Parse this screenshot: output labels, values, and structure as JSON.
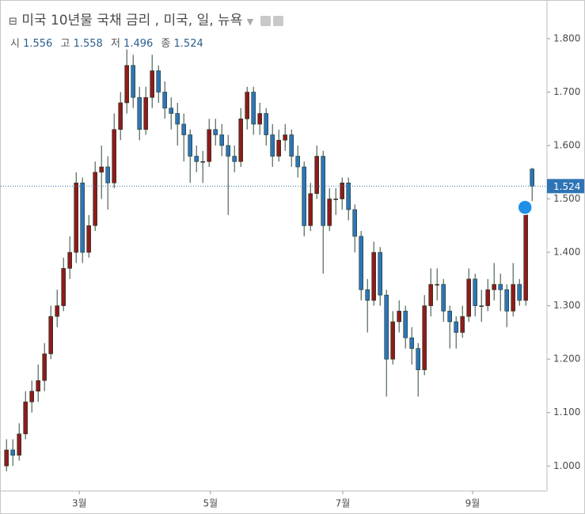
{
  "chart_data": {
    "type": "candlestick",
    "title": "미국 10년물 국채 금리 , 미국, 일, 뉴욕",
    "ohlc_labels": [
      "시",
      "고",
      "저",
      "종"
    ],
    "x": [
      0,
      1,
      2,
      3,
      4,
      5,
      6,
      7,
      8,
      9,
      10,
      11,
      12,
      13,
      14,
      15,
      16,
      17,
      18,
      19,
      20,
      21,
      22,
      23,
      24,
      25,
      26,
      27,
      28,
      29,
      30,
      31,
      32,
      33,
      34,
      35,
      36,
      37,
      38,
      39,
      40,
      41,
      42,
      43,
      44,
      45,
      46,
      47,
      48,
      49,
      50,
      51,
      52,
      53,
      54,
      55,
      56,
      57,
      58,
      59,
      60,
      61,
      62,
      63,
      64,
      65,
      66,
      67,
      68,
      69,
      70,
      71,
      72,
      73,
      74,
      75,
      76,
      77,
      78,
      79,
      80,
      81,
      82,
      83
    ],
    "open": [
      1.0,
      1.03,
      1.02,
      1.06,
      1.12,
      1.14,
      1.16,
      1.21,
      1.28,
      1.3,
      1.37,
      1.4,
      1.53,
      1.4,
      1.45,
      1.55,
      1.56,
      1.53,
      1.63,
      1.68,
      1.75,
      1.69,
      1.63,
      1.69,
      1.74,
      1.7,
      1.67,
      1.66,
      1.64,
      1.62,
      1.58,
      1.57,
      1.57,
      1.63,
      1.62,
      1.6,
      1.58,
      1.57,
      1.65,
      1.7,
      1.64,
      1.66,
      1.62,
      1.58,
      1.61,
      1.62,
      1.58,
      1.56,
      1.45,
      1.51,
      1.58,
      1.45,
      1.5,
      1.5,
      1.53,
      1.48,
      1.43,
      1.33,
      1.31,
      1.4,
      1.32,
      1.2,
      1.27,
      1.29,
      1.24,
      1.22,
      1.18,
      1.3,
      1.34,
      1.34,
      1.29,
      1.27,
      1.25,
      1.28,
      1.35,
      1.3,
      1.3,
      1.33,
      1.34,
      1.33,
      1.29,
      1.34,
      1.31,
      1.556
    ],
    "high": [
      1.05,
      1.05,
      1.08,
      1.14,
      1.16,
      1.19,
      1.23,
      1.3,
      1.33,
      1.39,
      1.43,
      1.55,
      1.54,
      1.47,
      1.57,
      1.6,
      1.58,
      1.66,
      1.7,
      1.78,
      1.77,
      1.71,
      1.71,
      1.77,
      1.75,
      1.72,
      1.69,
      1.68,
      1.66,
      1.63,
      1.6,
      1.59,
      1.65,
      1.65,
      1.64,
      1.62,
      1.6,
      1.67,
      1.71,
      1.71,
      1.68,
      1.67,
      1.64,
      1.63,
      1.64,
      1.63,
      1.6,
      1.57,
      1.53,
      1.6,
      1.59,
      1.52,
      1.52,
      1.54,
      1.54,
      1.49,
      1.44,
      1.35,
      1.42,
      1.41,
      1.33,
      1.29,
      1.31,
      1.3,
      1.26,
      1.23,
      1.32,
      1.37,
      1.37,
      1.35,
      1.3,
      1.28,
      1.3,
      1.37,
      1.36,
      1.33,
      1.35,
      1.38,
      1.36,
      1.34,
      1.38,
      1.35,
      1.48,
      1.558
    ],
    "low": [
      0.99,
      1.0,
      1.01,
      1.05,
      1.1,
      1.12,
      1.14,
      1.2,
      1.26,
      1.29,
      1.35,
      1.38,
      1.38,
      1.39,
      1.44,
      1.5,
      1.48,
      1.52,
      1.61,
      1.66,
      1.67,
      1.61,
      1.62,
      1.67,
      1.68,
      1.65,
      1.63,
      1.6,
      1.57,
      1.53,
      1.55,
      1.53,
      1.56,
      1.6,
      1.58,
      1.47,
      1.55,
      1.56,
      1.63,
      1.62,
      1.62,
      1.6,
      1.56,
      1.57,
      1.59,
      1.56,
      1.54,
      1.43,
      1.44,
      1.5,
      1.36,
      1.44,
      1.47,
      1.48,
      1.46,
      1.4,
      1.31,
      1.25,
      1.3,
      1.3,
      1.13,
      1.19,
      1.25,
      1.22,
      1.19,
      1.13,
      1.17,
      1.28,
      1.31,
      1.27,
      1.22,
      1.22,
      1.24,
      1.27,
      1.28,
      1.27,
      1.29,
      1.31,
      1.29,
      1.26,
      1.28,
      1.3,
      1.3,
      1.496
    ],
    "close": [
      1.03,
      1.02,
      1.06,
      1.12,
      1.14,
      1.16,
      1.21,
      1.28,
      1.3,
      1.37,
      1.4,
      1.53,
      1.4,
      1.45,
      1.55,
      1.56,
      1.53,
      1.63,
      1.68,
      1.75,
      1.69,
      1.63,
      1.69,
      1.74,
      1.7,
      1.67,
      1.66,
      1.64,
      1.62,
      1.58,
      1.57,
      1.57,
      1.63,
      1.62,
      1.6,
      1.58,
      1.57,
      1.65,
      1.7,
      1.64,
      1.66,
      1.62,
      1.58,
      1.61,
      1.62,
      1.58,
      1.56,
      1.45,
      1.51,
      1.58,
      1.45,
      1.5,
      1.5,
      1.53,
      1.48,
      1.43,
      1.33,
      1.31,
      1.4,
      1.32,
      1.2,
      1.27,
      1.29,
      1.24,
      1.22,
      1.18,
      1.3,
      1.34,
      1.34,
      1.29,
      1.27,
      1.25,
      1.28,
      1.35,
      1.3,
      1.3,
      1.33,
      1.34,
      1.33,
      1.29,
      1.34,
      1.31,
      1.47,
      1.524
    ],
    "up_color": "#8e1b1b",
    "down_color": "#2f74b5",
    "last_price_color": "#2f74b5",
    "xlim": [
      -0.9,
      85.35
    ],
    "xticks": [
      {
        "value": 11.5,
        "label": "3월"
      },
      {
        "value": 32.2,
        "label": "5월"
      },
      {
        "value": 53.1,
        "label": "7월"
      },
      {
        "value": 73.6,
        "label": "9월"
      }
    ],
    "ylim": [
      0.953,
      1.871
    ],
    "yticks": [
      {
        "value": 1.0,
        "label": "1.000"
      },
      {
        "value": 1.1,
        "label": "1.100"
      },
      {
        "value": 1.2,
        "label": "1.200"
      },
      {
        "value": 1.3,
        "label": "1.300"
      },
      {
        "value": 1.4,
        "label": "1.400"
      },
      {
        "value": 1.5,
        "label": "1.500"
      },
      {
        "value": 1.6,
        "label": "1.600"
      },
      {
        "value": 1.7,
        "label": "1.700"
      },
      {
        "value": 1.8,
        "label": "1.800"
      }
    ]
  }
}
